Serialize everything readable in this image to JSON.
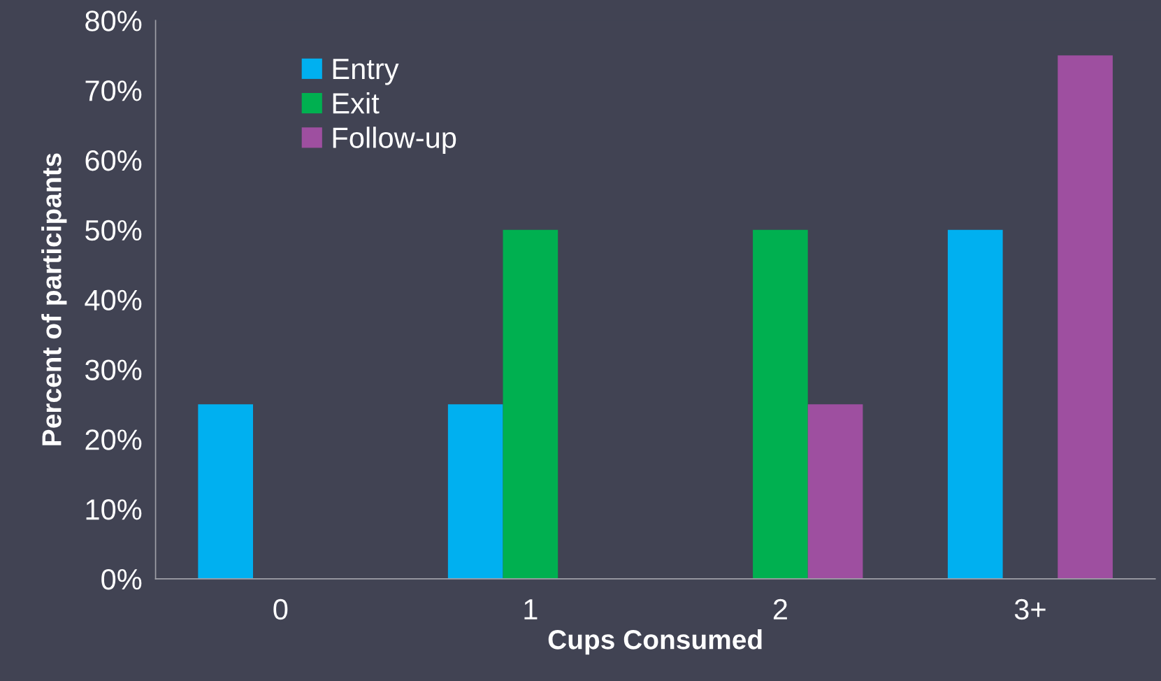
{
  "chart_data": {
    "type": "bar",
    "xlabel": "Cups Consumed",
    "ylabel": "Percent of participants",
    "categories": [
      "0",
      "1",
      "2",
      "3+"
    ],
    "series": [
      {
        "name": "Entry",
        "color": "#00b0f0",
        "values": [
          25,
          25,
          0,
          50
        ]
      },
      {
        "name": "Exit",
        "color": "#00b050",
        "values": [
          0,
          50,
          50,
          0
        ]
      },
      {
        "name": "Follow-up",
        "color": "#9e4fa0",
        "values": [
          0,
          0,
          25,
          75
        ]
      }
    ],
    "ylim": [
      0,
      80
    ],
    "yticks": [
      {
        "value": 0,
        "label": "0%"
      },
      {
        "value": 10,
        "label": "10%"
      },
      {
        "value": 20,
        "label": "20%"
      },
      {
        "value": 30,
        "label": "30%"
      },
      {
        "value": 40,
        "label": "40%"
      },
      {
        "value": 50,
        "label": "50%"
      },
      {
        "value": 60,
        "label": "60%"
      },
      {
        "value": 70,
        "label": "70%"
      },
      {
        "value": 80,
        "label": "80%"
      }
    ],
    "grid": false,
    "legend": "top left"
  }
}
